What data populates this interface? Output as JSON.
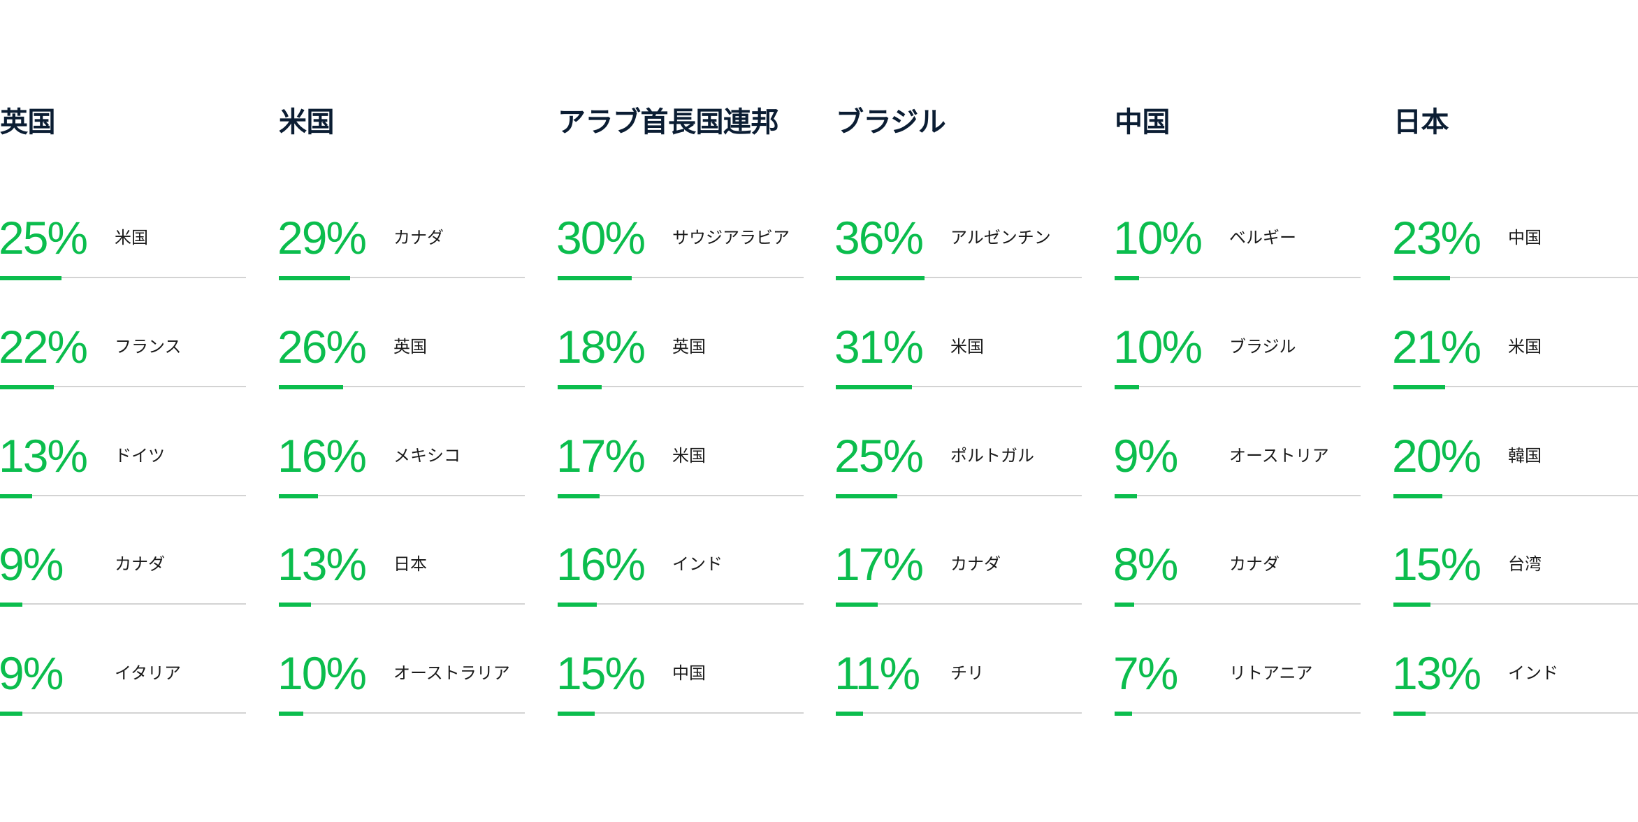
{
  "accent_color": "#0bbd4d",
  "title_color": "#0b1d33",
  "track_color": "#d3d3d3",
  "chart_data": [
    {
      "type": "bar",
      "title": "英国",
      "categories": [
        "米国",
        "フランス",
        "ドイツ",
        "カナダ",
        "イタリア"
      ],
      "values": [
        25,
        22,
        13,
        9,
        9
      ],
      "labels": [
        "25%",
        "22%",
        "13%",
        "9%",
        "9%"
      ],
      "ylim": [
        0,
        100
      ]
    },
    {
      "type": "bar",
      "title": "米国",
      "categories": [
        "カナダ",
        "英国",
        "メキシコ",
        "日本",
        "オーストラリア"
      ],
      "values": [
        29,
        26,
        16,
        13,
        10
      ],
      "labels": [
        "29%",
        "26%",
        "16%",
        "13%",
        "10%"
      ],
      "ylim": [
        0,
        100
      ]
    },
    {
      "type": "bar",
      "title": "アラブ首長国連邦",
      "categories": [
        "サウジアラビア",
        "英国",
        "米国",
        "インド",
        "中国"
      ],
      "values": [
        30,
        18,
        17,
        16,
        15
      ],
      "labels": [
        "30%",
        "18%",
        "17%",
        "16%",
        "15%"
      ],
      "ylim": [
        0,
        100
      ]
    },
    {
      "type": "bar",
      "title": "ブラジル",
      "categories": [
        "アルゼンチン",
        "米国",
        "ポルトガル",
        "カナダ",
        "チリ"
      ],
      "values": [
        36,
        31,
        25,
        17,
        11
      ],
      "labels": [
        "36%",
        "31%",
        "25%",
        "17%",
        "11%"
      ],
      "ylim": [
        0,
        100
      ]
    },
    {
      "type": "bar",
      "title": "中国",
      "categories": [
        "ベルギー",
        "ブラジル",
        "オーストリア",
        "カナダ",
        "リトアニア"
      ],
      "values": [
        10,
        10,
        9,
        8,
        7
      ],
      "labels": [
        "10%",
        "10%",
        "9%",
        "8%",
        "7%"
      ],
      "ylim": [
        0,
        100
      ]
    },
    {
      "type": "bar",
      "title": "日本",
      "categories": [
        "中国",
        "米国",
        "韓国",
        "台湾",
        "インド"
      ],
      "values": [
        23,
        21,
        20,
        15,
        13
      ],
      "labels": [
        "23%",
        "21%",
        "20%",
        "15%",
        "13%"
      ],
      "ylim": [
        0,
        100
      ]
    }
  ]
}
